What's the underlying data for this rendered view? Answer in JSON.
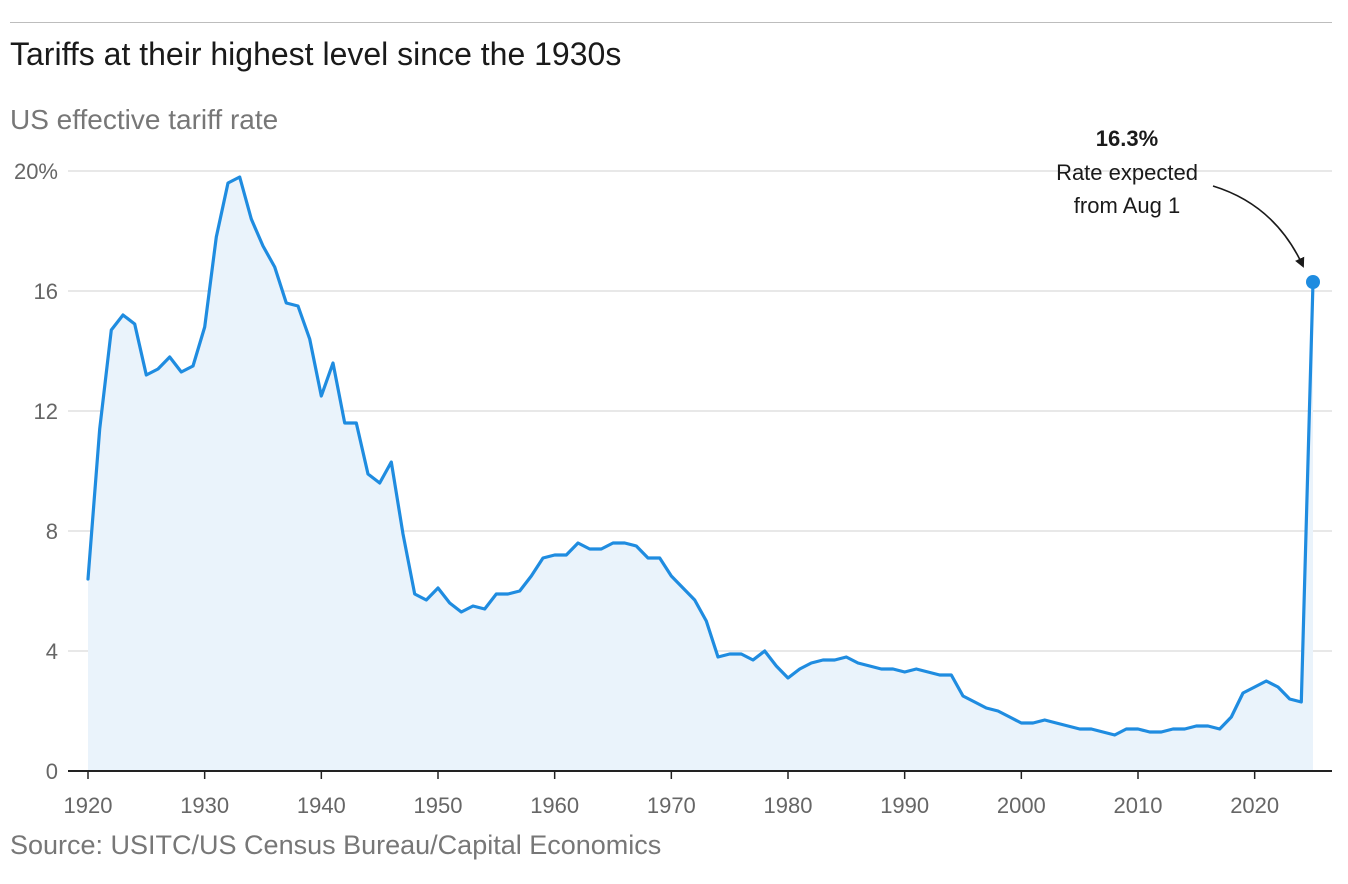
{
  "chart_data": {
    "type": "area",
    "title": "Tariffs at their highest level since the 1930s",
    "subtitle": "US effective tariff rate",
    "source": "Source: USITC/US Census Bureau/Capital Economics",
    "xlim": [
      1920,
      2025
    ],
    "ylim": [
      0,
      20
    ],
    "y_ticks": [
      {
        "value": 20,
        "label": "20%"
      },
      {
        "value": 16,
        "label": "16"
      },
      {
        "value": 12,
        "label": "12"
      },
      {
        "value": 8,
        "label": "8"
      },
      {
        "value": 4,
        "label": "4"
      },
      {
        "value": 0,
        "label": "0"
      }
    ],
    "x_ticks": [
      {
        "value": 1920,
        "label": "1920"
      },
      {
        "value": 1930,
        "label": "1930"
      },
      {
        "value": 1940,
        "label": "1940"
      },
      {
        "value": 1950,
        "label": "1950"
      },
      {
        "value": 1960,
        "label": "1960"
      },
      {
        "value": 1970,
        "label": "1970"
      },
      {
        "value": 1980,
        "label": "1980"
      },
      {
        "value": 1990,
        "label": "1990"
      },
      {
        "value": 2000,
        "label": "2000"
      },
      {
        "value": 2010,
        "label": "2010"
      },
      {
        "value": 2020,
        "label": "2020"
      }
    ],
    "grid": true,
    "series": [
      {
        "color": "#1f8ce0",
        "fill": "#eaf3fb",
        "x": [
          1920,
          1921,
          1922,
          1923,
          1924,
          1925,
          1926,
          1927,
          1928,
          1929,
          1930,
          1931,
          1932,
          1933,
          1934,
          1935,
          1936,
          1937,
          1938,
          1939,
          1940,
          1941,
          1942,
          1943,
          1944,
          1945,
          1946,
          1947,
          1948,
          1949,
          1950,
          1951,
          1952,
          1953,
          1954,
          1955,
          1956,
          1957,
          1958,
          1959,
          1960,
          1961,
          1962,
          1963,
          1964,
          1965,
          1966,
          1967,
          1968,
          1969,
          1970,
          1971,
          1972,
          1973,
          1974,
          1975,
          1976,
          1977,
          1978,
          1979,
          1980,
          1981,
          1982,
          1983,
          1984,
          1985,
          1986,
          1987,
          1988,
          1989,
          1990,
          1991,
          1992,
          1993,
          1994,
          1995,
          1996,
          1997,
          1998,
          1999,
          2000,
          2001,
          2002,
          2003,
          2004,
          2005,
          2006,
          2007,
          2008,
          2009,
          2010,
          2011,
          2012,
          2013,
          2014,
          2015,
          2016,
          2017,
          2018,
          2019,
          2020,
          2021,
          2022,
          2023,
          2024,
          2025
        ],
        "values": [
          6.4,
          11.4,
          14.7,
          15.2,
          14.9,
          13.2,
          13.4,
          13.8,
          13.3,
          13.5,
          14.8,
          17.8,
          19.6,
          19.8,
          18.4,
          17.5,
          16.8,
          15.6,
          15.5,
          14.4,
          12.5,
          13.6,
          11.6,
          11.6,
          9.9,
          9.6,
          10.3,
          7.9,
          5.9,
          5.7,
          6.1,
          5.6,
          5.3,
          5.5,
          5.4,
          5.9,
          5.9,
          6.0,
          6.5,
          7.1,
          7.2,
          7.2,
          7.6,
          7.4,
          7.4,
          7.6,
          7.6,
          7.5,
          7.1,
          7.1,
          6.5,
          6.1,
          5.7,
          5.0,
          3.8,
          3.9,
          3.9,
          3.7,
          4.0,
          3.5,
          3.1,
          3.4,
          3.6,
          3.7,
          3.7,
          3.8,
          3.6,
          3.5,
          3.4,
          3.4,
          3.3,
          3.4,
          3.3,
          3.2,
          3.2,
          2.5,
          2.3,
          2.1,
          2.0,
          1.8,
          1.6,
          1.6,
          1.7,
          1.6,
          1.5,
          1.4,
          1.4,
          1.3,
          1.2,
          1.4,
          1.4,
          1.3,
          1.3,
          1.4,
          1.4,
          1.5,
          1.5,
          1.4,
          1.8,
          2.6,
          2.8,
          3.0,
          2.8,
          2.4,
          2.3,
          16.3
        ]
      }
    ],
    "annotation": {
      "value_label": "16.3%",
      "lines": [
        "Rate expected",
        "from Aug 1"
      ],
      "x": 2025,
      "y": 16.3
    }
  }
}
